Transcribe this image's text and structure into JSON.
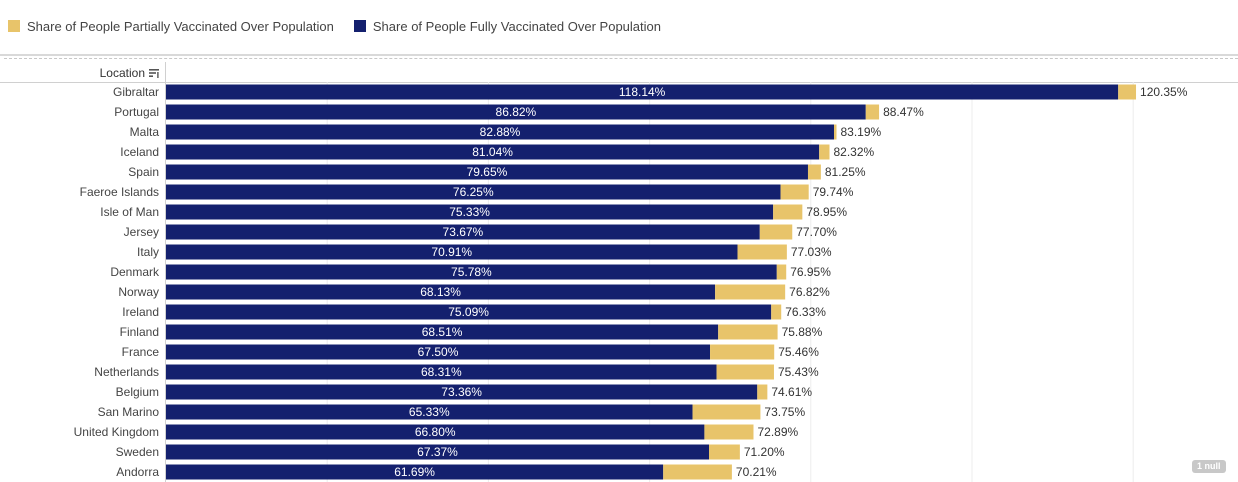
{
  "legend": {
    "partial_label": "Share of People Partially Vaccinated Over Population",
    "full_label": "Share of People Fully Vaccinated Over Population",
    "partial_color": "#e8c46a",
    "full_color": "#14206e"
  },
  "header": {
    "location_label": "Location",
    "sort_icon": "sort-icon"
  },
  "null_badge": "1 null",
  "chart_data": {
    "type": "bar",
    "orientation": "horizontal",
    "stacked": true,
    "categories": [
      "Gibraltar",
      "Portugal",
      "Malta",
      "Iceland",
      "Spain",
      "Faeroe Islands",
      "Isle of Man",
      "Jersey",
      "Italy",
      "Denmark",
      "Norway",
      "Ireland",
      "Finland",
      "France",
      "Netherlands",
      "Belgium",
      "San Marino",
      "United Kingdom",
      "Sweden",
      "Andorra"
    ],
    "series": [
      {
        "name": "Share of People Fully Vaccinated Over Population",
        "color": "#14206e",
        "values": [
          118.14,
          86.82,
          82.88,
          81.04,
          79.65,
          76.25,
          75.33,
          73.67,
          70.91,
          75.78,
          68.13,
          75.09,
          68.51,
          67.5,
          68.31,
          73.36,
          65.33,
          66.8,
          67.37,
          61.69
        ],
        "labels": [
          "118.14%",
          "86.82%",
          "82.88%",
          "81.04%",
          "79.65%",
          "76.25%",
          "75.33%",
          "73.67%",
          "70.91%",
          "75.78%",
          "68.13%",
          "75.09%",
          "68.51%",
          "67.50%",
          "68.31%",
          "73.36%",
          "65.33%",
          "66.80%",
          "67.37%",
          "61.69%"
        ]
      },
      {
        "name": "Share of People Partially Vaccinated Over Population",
        "color": "#e8c46a",
        "totals": [
          120.35,
          88.47,
          83.19,
          82.32,
          81.25,
          79.74,
          78.95,
          77.7,
          77.03,
          76.95,
          76.82,
          76.33,
          75.88,
          75.46,
          75.43,
          74.61,
          73.75,
          72.89,
          71.2,
          70.21
        ],
        "total_labels": [
          "120.35%",
          "88.47%",
          "83.19%",
          "82.32%",
          "81.25%",
          "79.74%",
          "78.95%",
          "77.70%",
          "77.03%",
          "76.95%",
          "76.82%",
          "76.33%",
          "75.88%",
          "75.46%",
          "75.43%",
          "74.61%",
          "73.75%",
          "72.89%",
          "71.20%",
          "70.21%"
        ]
      }
    ],
    "sorted_by": "total descending",
    "grid": true
  }
}
